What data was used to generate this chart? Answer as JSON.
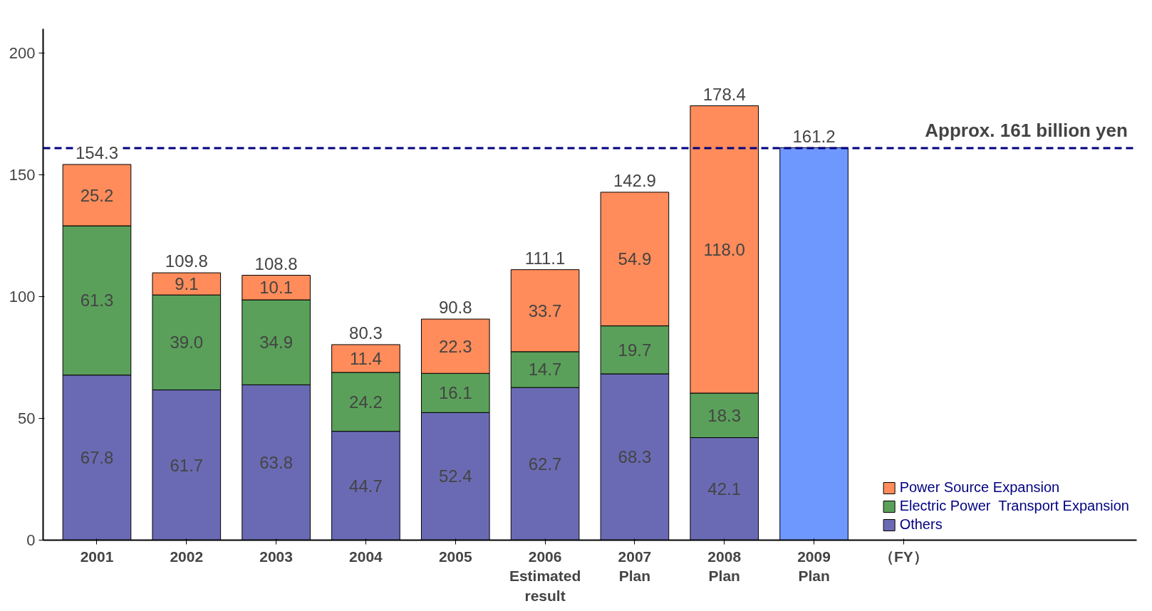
{
  "chart_data": {
    "type": "bar",
    "stacked": true,
    "xlabel": "（FY）",
    "categories": [
      "2001",
      "2002",
      "2003",
      "2004",
      "2005",
      "2006\nEstimated\nresult",
      "2007\nPlan",
      "2008\nPlan",
      "2009\nPlan"
    ],
    "series": [
      {
        "name": "Others",
        "color": "#6a6ab4",
        "values": [
          67.8,
          61.7,
          63.8,
          44.7,
          52.4,
          62.7,
          68.3,
          42.1,
          null
        ],
        "value_labels": [
          "67.8",
          "61.7",
          "63.8",
          "44.7",
          "52.4",
          "62.7",
          "68.3",
          "42.1",
          null
        ]
      },
      {
        "name": "Electric Power  Transport Expansion",
        "color": "#5aa05a",
        "values": [
          61.3,
          39.0,
          34.9,
          24.2,
          16.1,
          14.7,
          19.7,
          18.3,
          null
        ],
        "value_labels": [
          "61.3",
          "39.0",
          "34.9",
          "24.2",
          "16.1",
          "14.7",
          "19.7",
          "18.3",
          null
        ]
      },
      {
        "name": "Power Source Expansion",
        "color": "#ff8c5a",
        "values": [
          25.2,
          9.1,
          10.1,
          11.4,
          22.3,
          33.7,
          54.9,
          118.0,
          null
        ],
        "value_labels": [
          "25.2",
          "9.1",
          "10.1",
          "11.4",
          "22.3",
          "33.7",
          "54.9",
          "118.0",
          null
        ]
      },
      {
        "color": "#6f98ff",
        "values": [
          null,
          null,
          null,
          null,
          null,
          null,
          null,
          null,
          161.2
        ]
      }
    ],
    "totals": [
      "154.3",
      "109.8",
      "108.8",
      "80.3",
      "90.8",
      "111.1",
      "142.9",
      "178.4",
      "161.2"
    ],
    "ylim": [
      0,
      210
    ],
    "yticks": [
      0,
      50,
      100,
      150,
      200
    ],
    "ref_lines": [
      {
        "axis": "y",
        "value": 161,
        "label": "Approx. 161 billion yen",
        "color": "#000080",
        "line_style": "dashed"
      }
    ],
    "grid": false,
    "legend": "bottom right"
  }
}
